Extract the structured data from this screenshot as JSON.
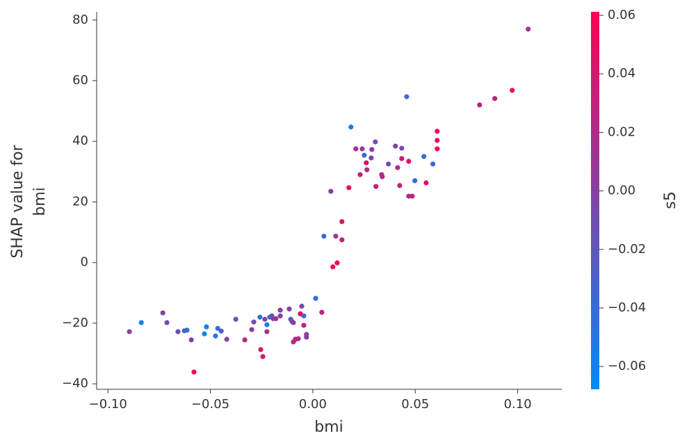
{
  "chart_data": {
    "type": "scatter",
    "xlabel": "bmi",
    "ylabel": [
      "SHAP value for",
      "bmi"
    ],
    "xlim": [
      -0.1055,
      0.1215
    ],
    "ylim": [
      -41.8,
      82.7
    ],
    "xticks": [
      {
        "value": -0.1,
        "label": "−0.10"
      },
      {
        "value": -0.05,
        "label": "−0.05"
      },
      {
        "value": 0,
        "label": "0.00"
      },
      0.05,
      {
        "value": 0.1,
        "label": "0.10"
      }
    ],
    "yticks": [
      {
        "value": -40,
        "label": "−40"
      },
      {
        "value": -20,
        "label": "−20"
      },
      0,
      20,
      40,
      60,
      80
    ],
    "colorbar": {
      "label": "s5",
      "lim": [
        -0.0678,
        0.0612
      ],
      "colormap": [
        "#008afb",
        "#ff0052"
      ],
      "ticks": [
        {
          "value": -0.06,
          "label": "−0.06"
        },
        {
          "value": -0.04,
          "label": "−0.04"
        },
        {
          "value": -0.02,
          "label": "−0.02"
        },
        {
          "value": 0,
          "label": "0.00"
        },
        0.02,
        0.04,
        0.06
      ]
    },
    "x": [
      -0.0895,
      -0.0837,
      -0.0732,
      -0.0712,
      -0.0658,
      -0.0627,
      -0.0614,
      -0.0593,
      -0.058,
      -0.0529,
      -0.0519,
      -0.0475,
      -0.0464,
      -0.0447,
      -0.042,
      -0.0376,
      -0.0332,
      -0.0298,
      -0.0288,
      -0.0258,
      -0.0254,
      -0.0244,
      -0.0234,
      -0.0224,
      -0.0224,
      -0.021,
      -0.02,
      -0.0193,
      -0.018,
      -0.0159,
      -0.0159,
      -0.0115,
      -0.0108,
      -0.0102,
      -0.0095,
      -0.0095,
      -0.0085,
      -0.0071,
      -0.0061,
      -0.0054,
      -0.0044,
      -0.0044,
      -0.0031,
      -0.0031,
      0.0014,
      0.0044,
      0.0054,
      0.0088,
      0.0098,
      0.0112,
      0.0119,
      0.0142,
      0.0142,
      0.0176,
      0.0186,
      0.021,
      0.0231,
      0.0241,
      0.0251,
      0.0261,
      0.0264,
      0.0285,
      0.0288,
      0.0305,
      0.0308,
      0.0336,
      0.0339,
      0.0369,
      0.0403,
      0.0414,
      0.0424,
      0.0434,
      0.0434,
      0.0458,
      0.0468,
      0.0468,
      0.0485,
      0.0498,
      0.0542,
      0.0553,
      0.0586,
      0.0607,
      0.0607,
      0.0607,
      0.0814,
      0.0888,
      0.0973,
      0.1051
    ],
    "values": [
      -22.8,
      -19.8,
      -16.6,
      -19.8,
      -22.8,
      -22.5,
      -22.3,
      -25.5,
      -36.1,
      -23.5,
      -21.2,
      -24.2,
      -21.7,
      -22.6,
      -25.3,
      -18.7,
      -25.5,
      -22.1,
      -19.6,
      -18.0,
      -28.7,
      -31.0,
      -18.7,
      -20.5,
      -22.8,
      -18.0,
      -17.6,
      -18.5,
      -18.5,
      -15.7,
      -17.6,
      -15.3,
      -18.7,
      -19.4,
      -19.8,
      -26.2,
      -25.3,
      -25.1,
      -16.9,
      -14.4,
      -17.6,
      -20.7,
      -23.7,
      -24.6,
      -11.8,
      -16.4,
      8.7,
      23.5,
      -1.4,
      8.7,
      -0.1,
      13.5,
      7.5,
      24.7,
      44.7,
      37.5,
      29.0,
      37.5,
      35.4,
      32.9,
      30.6,
      34.5,
      37.3,
      39.8,
      25.1,
      29.0,
      28.3,
      32.5,
      38.4,
      31.3,
      25.4,
      34.3,
      37.7,
      54.7,
      33.4,
      21.9,
      21.9,
      27.0,
      35.0,
      26.3,
      32.5,
      43.3,
      40.3,
      37.5,
      52.0,
      54.1,
      56.8,
      77.0
    ],
    "color_values": [
      0.0,
      -0.06,
      0.0,
      -0.01,
      -0.01,
      -0.03,
      -0.04,
      0.0,
      0.05,
      -0.06,
      -0.06,
      -0.05,
      -0.04,
      -0.03,
      0.0,
      -0.02,
      0.02,
      0.0,
      -0.01,
      -0.05,
      0.04,
      0.04,
      0.0,
      -0.06,
      0.01,
      -0.04,
      -0.01,
      0.0,
      0.01,
      0.0,
      0.0,
      0.0,
      -0.03,
      0.0,
      0.0,
      0.02,
      0.03,
      0.02,
      0.05,
      -0.01,
      -0.04,
      0.03,
      0.0,
      0.0,
      -0.04,
      0.03,
      -0.04,
      0.0,
      0.05,
      0.01,
      0.05,
      0.04,
      0.03,
      0.05,
      -0.05,
      0.02,
      0.03,
      0.01,
      -0.04,
      0.05,
      0.02,
      -0.01,
      0.01,
      -0.01,
      0.03,
      0.02,
      0.02,
      -0.01,
      0.0,
      0.02,
      0.03,
      0.04,
      -0.01,
      -0.04,
      0.05,
      0.02,
      0.03,
      -0.04,
      -0.04,
      0.05,
      -0.04,
      0.06,
      0.05,
      0.06,
      0.03,
      0.03,
      0.05,
      0.01
    ]
  }
}
